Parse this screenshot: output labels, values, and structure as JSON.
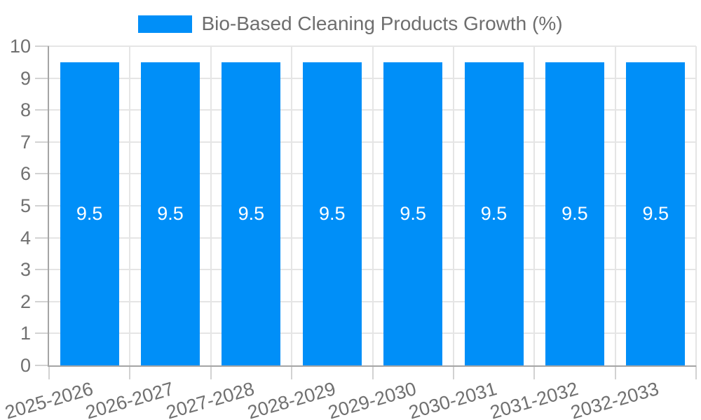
{
  "legend": {
    "label": "Bio-Based Cleaning Products Growth (%)"
  },
  "chart_data": {
    "type": "bar",
    "title": "Bio-Based Cleaning Products Growth (%)",
    "categories": [
      "2025-2026",
      "2026-2027",
      "2027-2028",
      "2028-2029",
      "2029-2030",
      "2030-2031",
      "2031-2032",
      "2032-2033"
    ],
    "values": [
      9.5,
      9.5,
      9.5,
      9.5,
      9.5,
      9.5,
      9.5,
      9.5
    ],
    "value_labels": [
      "9.5",
      "9.5",
      "9.5",
      "9.5",
      "9.5",
      "9.5",
      "9.5",
      "9.5"
    ],
    "xlabel": "",
    "ylabel": "",
    "ylim": [
      0,
      10
    ],
    "yticks": [
      0,
      1,
      2,
      3,
      4,
      5,
      6,
      7,
      8,
      9,
      10
    ],
    "grid": true,
    "legend_position": "top",
    "x_label_rotation_deg": -16
  },
  "colors": {
    "bar": "#008ff8",
    "bar_value_text": "#ffffff",
    "legend_text": "#6e6e6e",
    "tick_text": "#707070",
    "gridline": "#e5e5e5",
    "tick_mark": "#d2d2d2",
    "axis_line": "#a5a5a5",
    "background": "#ffffff"
  }
}
